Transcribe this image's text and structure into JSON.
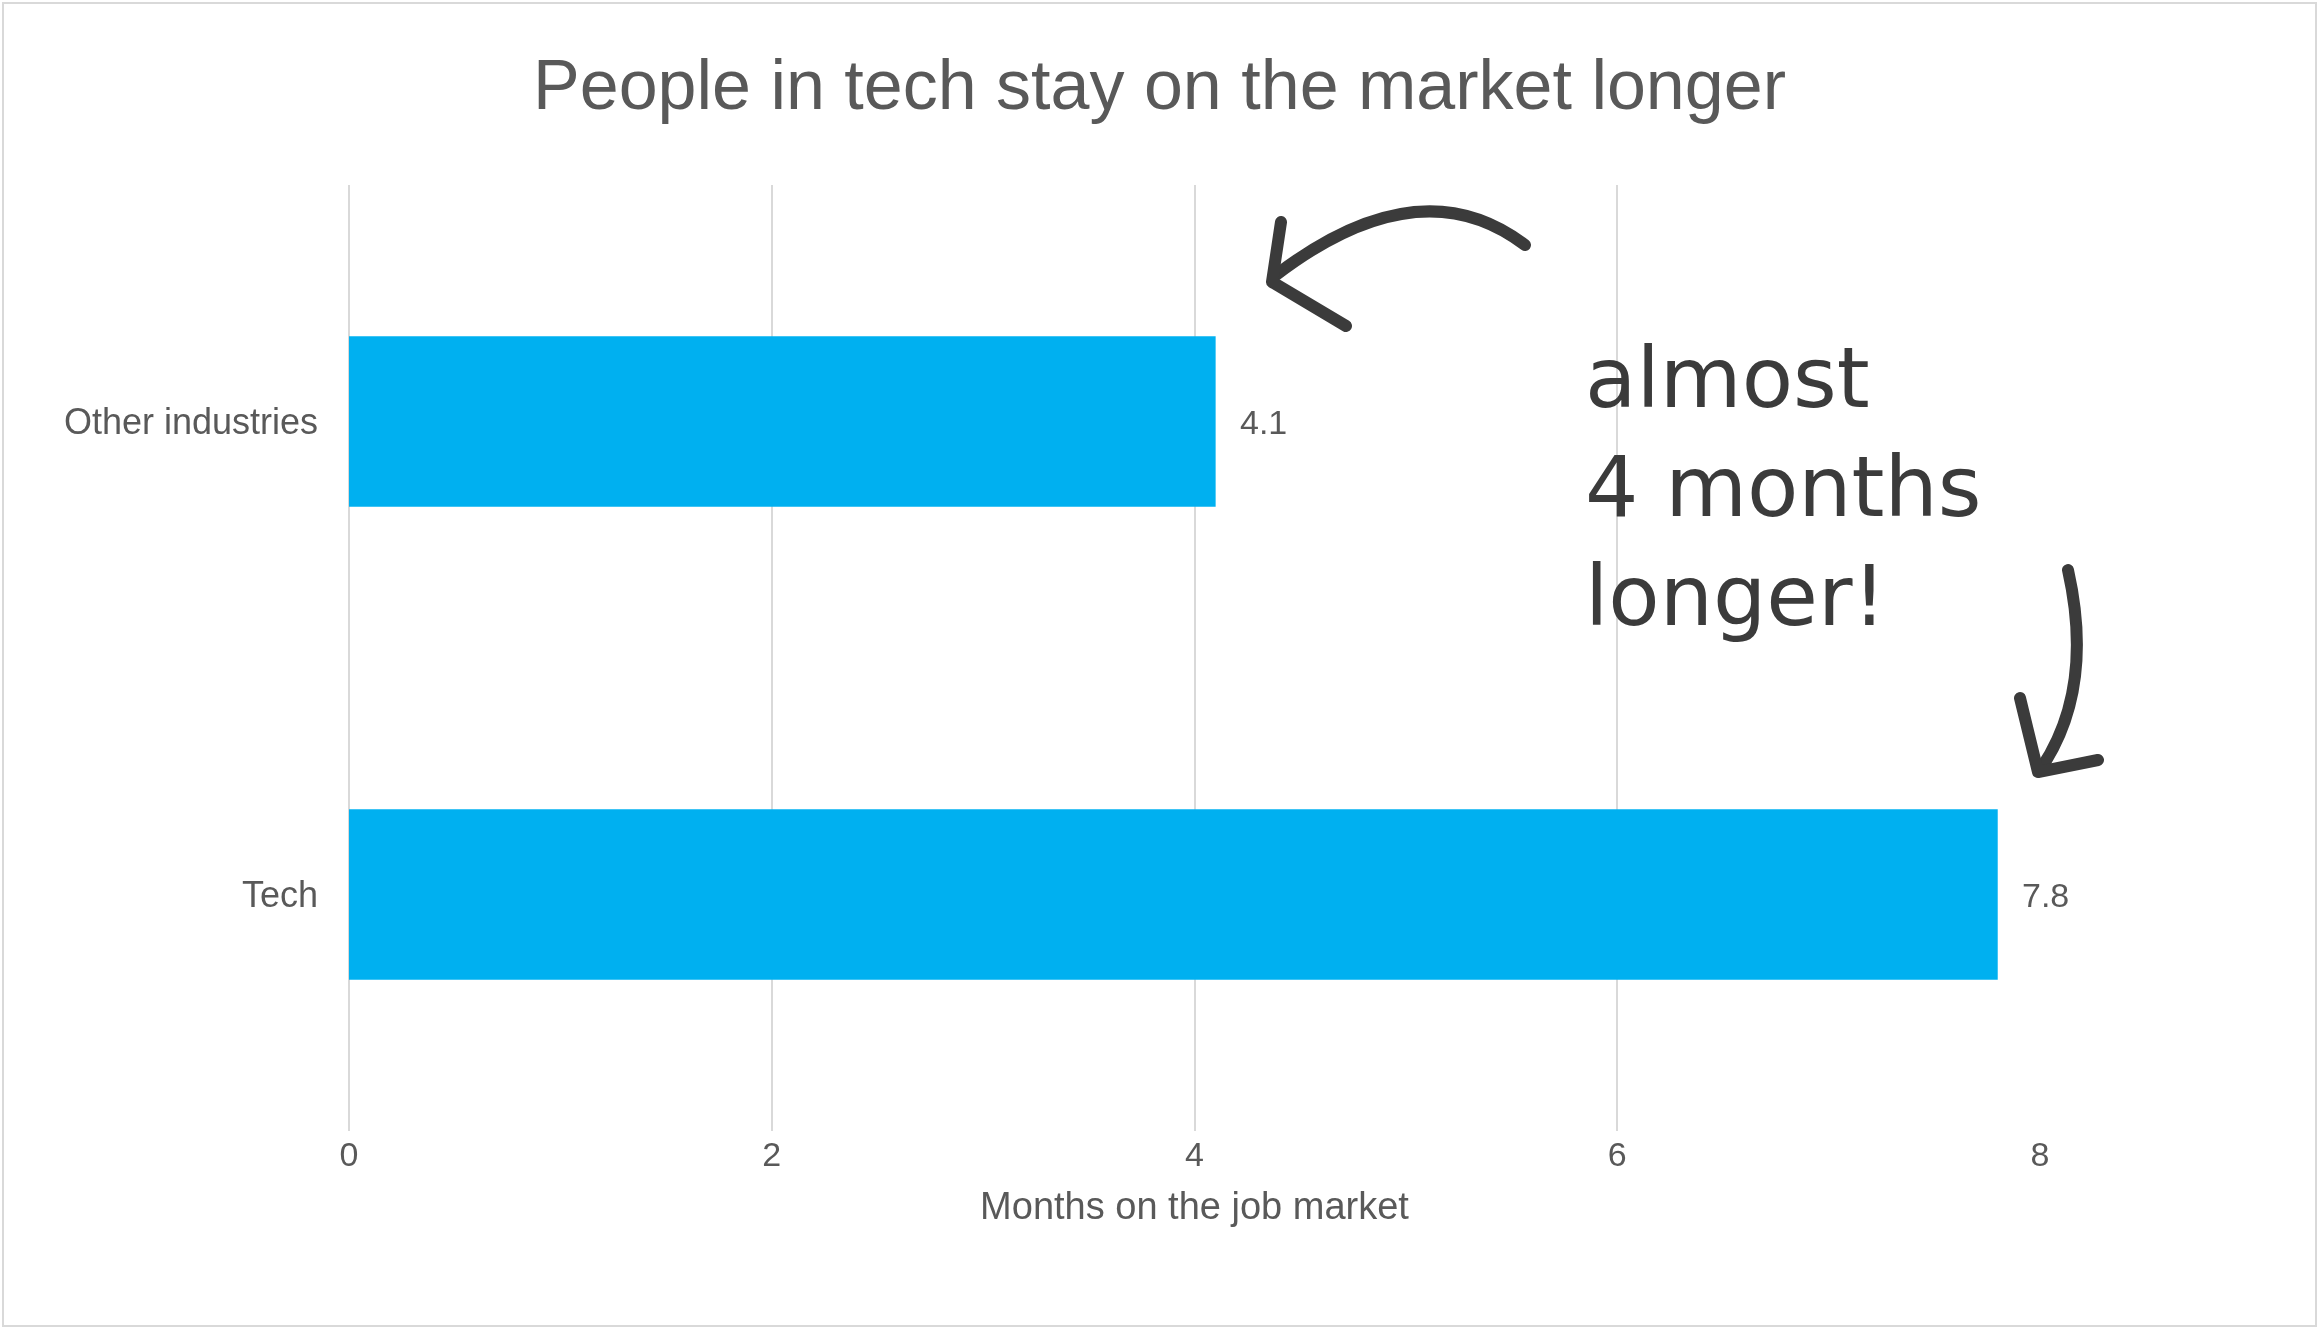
{
  "chart_data": {
    "type": "bar",
    "orientation": "horizontal",
    "title": "People in tech stay on the market longer",
    "xlabel": "Months on the job market",
    "categories": [
      "Other industries",
      "Tech"
    ],
    "values": [
      4.1,
      7.8
    ],
    "color": "#00b0f0",
    "xlim": [
      0,
      8
    ],
    "xticks": [
      0,
      2,
      4,
      6,
      8
    ],
    "grid": "x",
    "data_labels": true,
    "annotations": [
      "almost\n4 months\nlonger!"
    ]
  }
}
